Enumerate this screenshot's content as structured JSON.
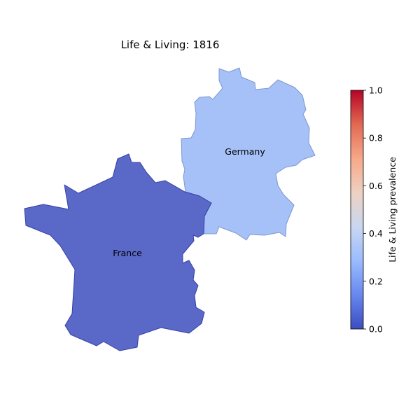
{
  "map": {
    "title": "Life & Living: 1816",
    "regions": [
      {
        "name": "France",
        "value": 0.09,
        "fill": "#5a68c8",
        "stroke": "#3540a8"
      },
      {
        "name": "Germany",
        "value": 0.23,
        "fill": "#a6c0f8",
        "stroke": "#7e97d0"
      }
    ]
  },
  "colorbar": {
    "label": "Life & Living prevalence",
    "range": [
      0.0,
      1.0
    ],
    "ticks": [
      "0.0",
      "0.2",
      "0.4",
      "0.6",
      "0.8",
      "1.0"
    ],
    "colormap": [
      "#3b4cc0",
      "#6788ee",
      "#9abbff",
      "#c9d7f0",
      "#edd1c2",
      "#f7a889",
      "#e26952",
      "#b40426"
    ]
  }
}
